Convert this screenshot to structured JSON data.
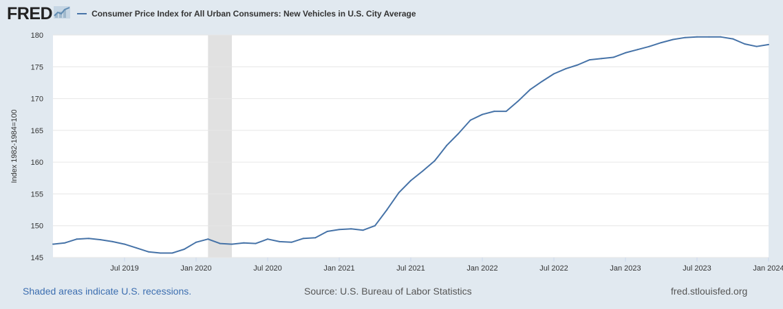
{
  "header": {
    "brand": "FRED",
    "brand_icon": "line-graph-icon"
  },
  "colors": {
    "background": "#e1e9f0",
    "plot_background": "#ffffff",
    "series": "#4572a7",
    "recession": "#e1e1e1",
    "grid": "#e6e6e6",
    "footer_link": "#3c6eb0"
  },
  "chart_data": {
    "type": "line",
    "title": "",
    "xlabel": "",
    "ylabel": "Index 1982-1984=100",
    "ylim": [
      145,
      180
    ],
    "y_ticks": [
      "145",
      "150",
      "155",
      "160",
      "165",
      "170",
      "175",
      "180"
    ],
    "x_range": [
      "2019-01",
      "2024-01"
    ],
    "x_ticks": [
      {
        "date": "2019-07",
        "label": "Jul 2019"
      },
      {
        "date": "2020-01",
        "label": "Jan 2020"
      },
      {
        "date": "2020-07",
        "label": "Jul 2020"
      },
      {
        "date": "2021-01",
        "label": "Jan 2021"
      },
      {
        "date": "2021-07",
        "label": "Jul 2021"
      },
      {
        "date": "2022-01",
        "label": "Jan 2022"
      },
      {
        "date": "2022-07",
        "label": "Jul 2022"
      },
      {
        "date": "2023-01",
        "label": "Jan 2023"
      },
      {
        "date": "2023-07",
        "label": "Jul 2023"
      },
      {
        "date": "2024-01",
        "label": "Jan 2024"
      }
    ],
    "grid": true,
    "legend": "top-left",
    "recessions": [
      {
        "start": "2020-02",
        "end": "2020-04"
      }
    ],
    "series": [
      {
        "name": "Consumer Price Index for All Urban Consumers: New Vehicles in U.S. City Average",
        "x": [
          "2019-01",
          "2019-02",
          "2019-03",
          "2019-04",
          "2019-05",
          "2019-06",
          "2019-07",
          "2019-08",
          "2019-09",
          "2019-10",
          "2019-11",
          "2019-12",
          "2020-01",
          "2020-02",
          "2020-03",
          "2020-04",
          "2020-05",
          "2020-06",
          "2020-07",
          "2020-08",
          "2020-09",
          "2020-10",
          "2020-11",
          "2020-12",
          "2021-01",
          "2021-02",
          "2021-03",
          "2021-04",
          "2021-05",
          "2021-06",
          "2021-07",
          "2021-08",
          "2021-09",
          "2021-10",
          "2021-11",
          "2021-12",
          "2022-01",
          "2022-02",
          "2022-03",
          "2022-04",
          "2022-05",
          "2022-06",
          "2022-07",
          "2022-08",
          "2022-09",
          "2022-10",
          "2022-11",
          "2022-12",
          "2023-01",
          "2023-02",
          "2023-03",
          "2023-04",
          "2023-05",
          "2023-06",
          "2023-07",
          "2023-08",
          "2023-09",
          "2023-10",
          "2023-11",
          "2023-12",
          "2024-01"
        ],
        "values": [
          147.1,
          147.3,
          147.9,
          148.0,
          147.8,
          147.5,
          147.1,
          146.5,
          145.9,
          145.7,
          145.7,
          146.3,
          147.4,
          147.9,
          147.2,
          147.1,
          147.3,
          147.2,
          147.9,
          147.5,
          147.4,
          148.0,
          148.1,
          149.1,
          149.4,
          149.5,
          149.3,
          150.0,
          152.5,
          155.2,
          157.1,
          158.6,
          160.2,
          162.6,
          164.5,
          166.6,
          167.5,
          168.0,
          168.0,
          169.6,
          171.4,
          172.7,
          173.9,
          174.7,
          175.3,
          176.1,
          176.3,
          176.5,
          177.2,
          177.7,
          178.2,
          178.8,
          179.3,
          179.6,
          179.7,
          179.7,
          179.7,
          179.4,
          178.6,
          178.2,
          178.5
        ]
      }
    ]
  },
  "footer": {
    "recession_note": "Shaded areas indicate U.S. recessions.",
    "source": "Source: U.S. Bureau of Labor Statistics",
    "site": "fred.stlouisfed.org"
  }
}
